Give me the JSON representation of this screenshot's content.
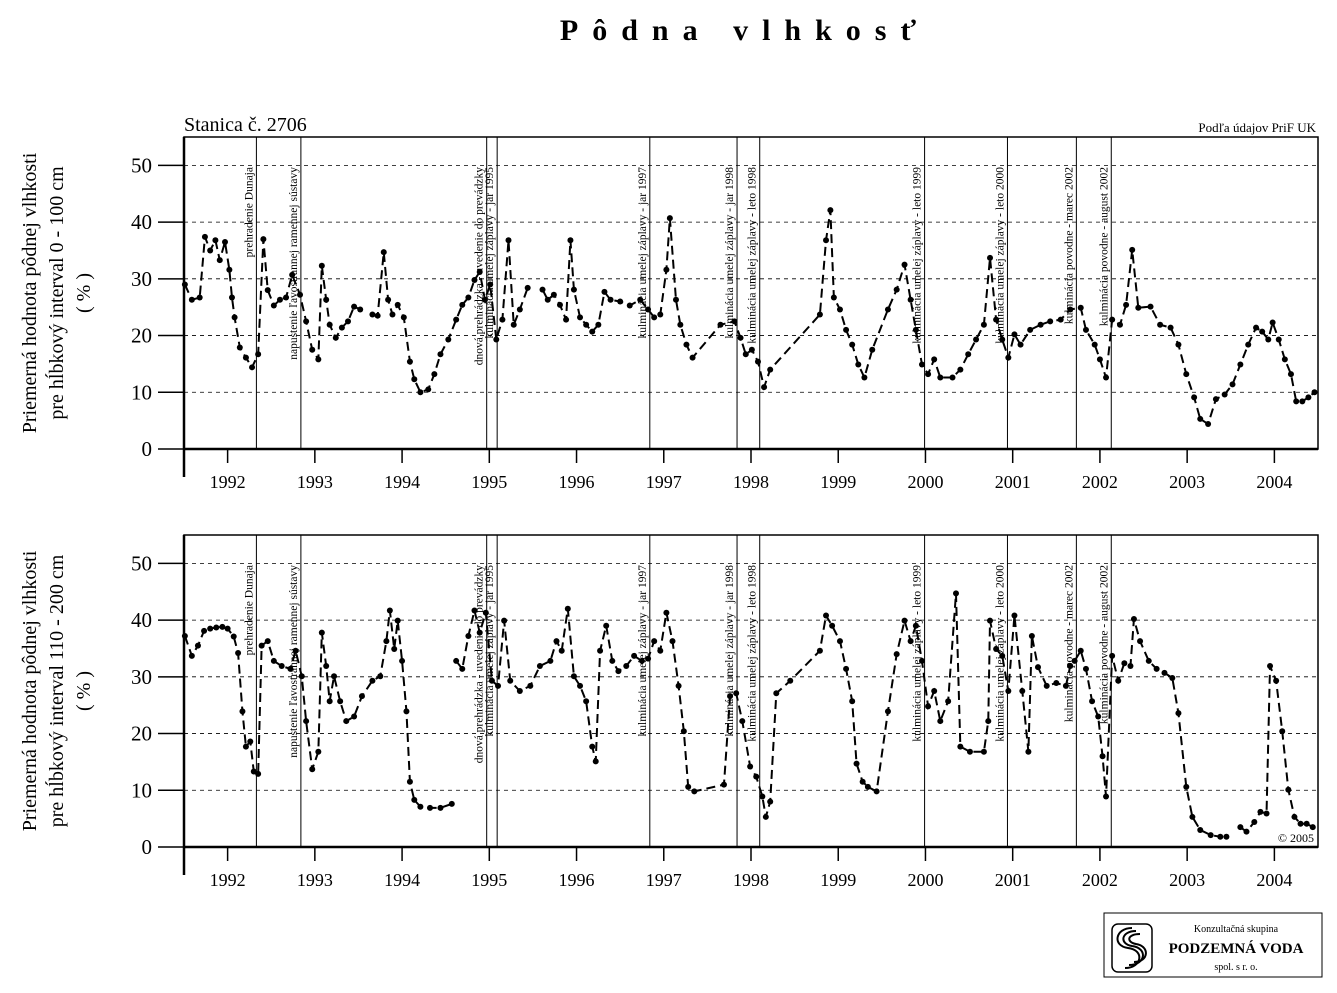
{
  "title": "Pôdna vlhkosť",
  "station": "Stanica č. 2706",
  "source": "Podľa údajov PriF UK",
  "copyright": "© 2005",
  "logo": {
    "line1": "Konzultačná skupina",
    "line2": "PODZEMNÁ VODA",
    "line3": "spol. s r. o."
  },
  "chart_data": [
    {
      "type": "line",
      "ylabel": [
        "Priemerná hodnota pôdnej vlhkosti",
        "pre hĺbkový interval 0 - 100 cm",
        "( % )"
      ],
      "color": "#000000",
      "grid": true,
      "xlim": [
        1992,
        2005
      ],
      "ylim": [
        0,
        55
      ],
      "yticks": [
        0,
        10,
        20,
        30,
        40,
        50
      ],
      "xticks": [
        {
          "value": 1992.5,
          "label": "1992"
        },
        {
          "value": 1993.5,
          "label": "1993"
        },
        {
          "value": 1994.5,
          "label": "1994"
        },
        {
          "value": 1995.5,
          "label": "1995"
        },
        {
          "value": 1996.5,
          "label": "1996"
        },
        {
          "value": 1997.5,
          "label": "1997"
        },
        {
          "value": 1998.5,
          "label": "1998"
        },
        {
          "value": 1999.5,
          "label": "1999"
        },
        {
          "value": 2000.5,
          "label": "2000"
        },
        {
          "value": 2001.5,
          "label": "2001"
        },
        {
          "value": 2002.5,
          "label": "2002"
        },
        {
          "value": 2003.5,
          "label": "2003"
        },
        {
          "value": 2004.5,
          "label": "2004"
        }
      ],
      "annotations": [
        {
          "x": 1992.83,
          "label": "prehradenie Dunaja"
        },
        {
          "x": 1993.34,
          "label": "napustenie ľavostrannej ramennej sústavy"
        },
        {
          "x": 1995.47,
          "label": "dnová prehrádzka - uvedenie do prevádzky"
        },
        {
          "x": 1995.59,
          "label": "kulminácia umelej záplavy - jar 1995"
        },
        {
          "x": 1997.34,
          "label": "kulminácia umelej záplavy - jar 1997"
        },
        {
          "x": 1998.34,
          "label": "kulminácia umelej záplavy - jar 1998"
        },
        {
          "x": 1998.6,
          "label": "kulminácia umelej záplavy - leto 1998"
        },
        {
          "x": 2000.49,
          "label": "kulminácia umelej záplavy - leto 1999"
        },
        {
          "x": 2001.44,
          "label": "kulminácia umelej záplavy - leto 2000"
        },
        {
          "x": 2002.23,
          "label": "kulminácia povodne - marec 2002"
        },
        {
          "x": 2002.63,
          "label": "kulminácia povodne - august 2002"
        }
      ],
      "x": [
        1992.01,
        1992.09,
        1992.18,
        1992.24,
        1992.3,
        1992.36,
        1992.41,
        1992.47,
        1992.52,
        1992.55,
        1992.58,
        1992.64,
        1992.71,
        1992.78,
        1992.85,
        1992.91,
        1992.96,
        1993.03,
        1993.1,
        1993.17,
        1993.24,
        1993.33,
        1993.4,
        1993.47,
        1993.54,
        1993.58,
        1993.63,
        1993.67,
        1993.74,
        1993.81,
        1993.88,
        1993.95,
        1994.02,
        null,
        1994.16,
        1994.22,
        1994.29,
        1994.34,
        1994.39,
        1994.45,
        1994.52,
        1994.59,
        1994.64,
        1994.71,
        1994.8,
        1994.87,
        1994.94,
        1995.03,
        1995.12,
        1995.19,
        1995.26,
        1995.33,
        1995.39,
        1995.45,
        1995.51,
        1995.58,
        1995.65,
        1995.72,
        1995.78,
        1995.85,
        1995.94,
        null,
        1996.11,
        1996.17,
        1996.24,
        1996.31,
        1996.38,
        1996.43,
        1996.47,
        1996.54,
        1996.61,
        1996.68,
        1996.75,
        1996.82,
        1996.89,
        1997.0,
        1997.11,
        1997.23,
        1997.32,
        1997.39,
        1997.46,
        1997.53,
        1997.57,
        1997.64,
        1997.69,
        1997.76,
        1997.83,
        1998.15,
        1998.31,
        1998.38,
        1998.44,
        1998.51,
        1998.58,
        1998.65,
        1998.72,
        1999.29,
        1999.36,
        1999.41,
        1999.45,
        1999.52,
        1999.59,
        1999.66,
        1999.73,
        1999.8,
        1999.89,
        2000.07,
        2000.17,
        2000.26,
        2000.33,
        2000.39,
        2000.46,
        2000.53,
        2000.6,
        2000.67,
        2000.81,
        2000.9,
        2000.99,
        2001.08,
        2001.17,
        2001.24,
        2001.31,
        2001.38,
        2001.45,
        2001.52,
        2001.59,
        2001.7,
        2001.82,
        2001.93,
        2002.05,
        2002.16,
        2002.28,
        2002.34,
        2002.44,
        2002.5,
        2002.57,
        2002.64,
        2002.73,
        2002.8,
        2002.87,
        2002.94,
        2003.08,
        2003.19,
        2003.31,
        2003.4,
        2003.49,
        2003.58,
        2003.65,
        2003.74,
        2003.83,
        2003.93,
        2004.02,
        2004.11,
        2004.2,
        2004.29,
        2004.36,
        2004.43,
        2004.48,
        2004.55,
        2004.62,
        2004.69,
        2004.75,
        2004.82,
        2004.89,
        2004.96
      ],
      "values": [
        29,
        26.3,
        26.7,
        37.4,
        35,
        36.8,
        33.3,
        36.5,
        31.6,
        26.7,
        23.2,
        17.9,
        16.1,
        14.4,
        16.7,
        37,
        28,
        25.3,
        26.3,
        26.7,
        30.7,
        27.2,
        22.5,
        17.5,
        15.8,
        32.3,
        26.3,
        21.9,
        19.6,
        21.4,
        22.5,
        25.1,
        24.6,
        null,
        23.7,
        23.5,
        34.7,
        26.3,
        23.7,
        25.4,
        23.2,
        15.4,
        12.3,
        10,
        10.5,
        13.2,
        16.7,
        19.3,
        22.8,
        25.4,
        26.7,
        29.8,
        31.2,
        26.3,
        29,
        19.3,
        22.8,
        36.8,
        21.9,
        24.6,
        28.4,
        null,
        28.1,
        26.3,
        27.2,
        25.4,
        22.8,
        36.8,
        28.1,
        23.2,
        21.9,
        20.7,
        21.9,
        27.7,
        26.3,
        26,
        25.3,
        26.3,
        24.6,
        23.2,
        23.7,
        31.6,
        40.7,
        26.3,
        21.9,
        18.4,
        16.1,
        21.9,
        22.5,
        19.6,
        16.7,
        17.5,
        15.4,
        10.9,
        14,
        23.7,
        36.8,
        42.1,
        26.7,
        24.6,
        21,
        18.4,
        14.9,
        12.6,
        17.5,
        24.6,
        28.1,
        32.5,
        26.3,
        21,
        14.9,
        13.2,
        15.8,
        12.6,
        12.6,
        14,
        16.7,
        19.3,
        21.9,
        33.7,
        22.8,
        19.3,
        16.1,
        20.2,
        18.4,
        21,
        21.9,
        22.5,
        22.8,
        24.6,
        24.9,
        21,
        18.4,
        15.8,
        12.6,
        22.8,
        21.9,
        25.4,
        35.1,
        24.9,
        25.1,
        21.9,
        21.4,
        18.4,
        13.2,
        9.1,
        5.3,
        4.4,
        8.8,
        9.6,
        11.4,
        14.9,
        18.4,
        21.4,
        20.7,
        19.3,
        22.3,
        19.3,
        15.8,
        13.2,
        8.4,
        8.4,
        9.1,
        10
      ]
    },
    {
      "type": "line",
      "ylabel": [
        "Priemerná hodnota pôdnej vlhkosti",
        "pre hĺbkový interval 110 - 200 cm",
        "( % )"
      ],
      "color": "#000000",
      "grid": true,
      "xlim": [
        1992,
        2005
      ],
      "ylim": [
        0,
        55
      ],
      "yticks": [
        0,
        10,
        20,
        30,
        40,
        50
      ],
      "xticks": [
        {
          "value": 1992.5,
          "label": "1992"
        },
        {
          "value": 1993.5,
          "label": "1993"
        },
        {
          "value": 1994.5,
          "label": "1994"
        },
        {
          "value": 1995.5,
          "label": "1995"
        },
        {
          "value": 1996.5,
          "label": "1996"
        },
        {
          "value": 1997.5,
          "label": "1997"
        },
        {
          "value": 1998.5,
          "label": "1998"
        },
        {
          "value": 1999.5,
          "label": "1999"
        },
        {
          "value": 2000.5,
          "label": "2000"
        },
        {
          "value": 2001.5,
          "label": "2001"
        },
        {
          "value": 2002.5,
          "label": "2002"
        },
        {
          "value": 2003.5,
          "label": "2003"
        },
        {
          "value": 2004.5,
          "label": "2004"
        }
      ],
      "annotations": [
        {
          "x": 1992.83,
          "label": "prehradenie Dunaja"
        },
        {
          "x": 1993.34,
          "label": "napustenie ľavostrannej ramennej sústavy"
        },
        {
          "x": 1995.47,
          "label": "dnová prehrádzka - uvedenie do prevádzky"
        },
        {
          "x": 1995.59,
          "label": "kulminácia umelej záplavy - jar 1995"
        },
        {
          "x": 1997.34,
          "label": "kulminácia umelej záplavy - jar 1997"
        },
        {
          "x": 1998.34,
          "label": "kulminácia umelej záplavy - jar 1998"
        },
        {
          "x": 1998.6,
          "label": "kulminácia umelej záplavy - leto 1998"
        },
        {
          "x": 2000.49,
          "label": "kulminácia umelej záplavy - leto 1999"
        },
        {
          "x": 2001.44,
          "label": "kulminácia umelej záplavy - leto 2000"
        },
        {
          "x": 2002.23,
          "label": "kulminácia povodne - marec 2002"
        },
        {
          "x": 2002.63,
          "label": "kulminácia povodne - august 2002"
        }
      ],
      "x": [
        1992.01,
        1992.09,
        1992.16,
        1992.23,
        1992.3,
        1992.37,
        1992.44,
        1992.5,
        1992.57,
        1992.62,
        1992.67,
        1992.71,
        1992.76,
        1992.8,
        1992.85,
        1992.89,
        1992.96,
        1993.03,
        1993.12,
        1993.22,
        1993.28,
        1993.35,
        1993.4,
        1993.47,
        1993.54,
        1993.58,
        1993.63,
        1993.67,
        1993.72,
        1993.79,
        1993.86,
        1993.95,
        1994.04,
        1994.16,
        1994.25,
        1994.32,
        1994.36,
        1994.41,
        1994.45,
        1994.5,
        1994.55,
        1994.59,
        1994.64,
        1994.71,
        1994.82,
        1994.94,
        1995.07,
        null,
        1995.12,
        1995.19,
        1995.26,
        1995.33,
        1995.39,
        1995.46,
        1995.53,
        1995.6,
        1995.67,
        1995.74,
        1995.85,
        1995.97,
        1996.08,
        1996.2,
        1996.27,
        1996.33,
        1996.4,
        1996.47,
        1996.54,
        1996.61,
        1996.68,
        1996.72,
        1996.77,
        1996.84,
        1996.91,
        1996.98,
        1997.07,
        1997.16,
        1997.25,
        1997.32,
        1997.39,
        1997.46,
        1997.53,
        1997.6,
        1997.67,
        1997.73,
        1997.78,
        1997.85,
        1998.19,
        1998.26,
        1998.33,
        1998.4,
        1998.49,
        1998.56,
        1998.63,
        1998.67,
        1998.72,
        1998.79,
        1998.95,
        1999.29,
        1999.36,
        1999.43,
        1999.52,
        1999.59,
        1999.66,
        1999.71,
        1999.78,
        1999.84,
        1999.94,
        2000.07,
        2000.17,
        2000.26,
        2000.33,
        2000.39,
        2000.46,
        2000.53,
        2000.6,
        2000.67,
        2000.76,
        2000.85,
        2000.9,
        2001.01,
        2001.17,
        2001.22,
        2001.24,
        2001.31,
        2001.38,
        2001.45,
        2001.52,
        2001.61,
        2001.68,
        2001.72,
        2001.79,
        2001.89,
        2002.0,
        2002.11,
        2002.16,
        2002.21,
        2002.28,
        2002.34,
        2002.41,
        2002.48,
        2002.53,
        2002.57,
        2002.64,
        2002.71,
        2002.78,
        2002.85,
        2002.89,
        2002.96,
        2003.06,
        2003.15,
        2003.24,
        2003.33,
        2003.4,
        2003.49,
        2003.56,
        2003.65,
        2003.77,
        2003.88,
        2003.95,
        null,
        2004.11,
        2004.18,
        2004.27,
        2004.34,
        2004.41,
        2004.45,
        2004.52,
        2004.59,
        2004.66,
        2004.73,
        2004.8,
        2004.87,
        2004.94
      ],
      "values": [
        37.2,
        33.7,
        35.5,
        38.1,
        38.5,
        38.7,
        38.8,
        38.5,
        37.1,
        34.2,
        23.9,
        17.7,
        18.6,
        13.3,
        12.9,
        35.5,
        36.3,
        32.8,
        31.9,
        31.4,
        34.6,
        30.1,
        22.2,
        13.7,
        16.8,
        37.8,
        31.9,
        25.7,
        30.1,
        25.7,
        22.2,
        23,
        26.6,
        29.3,
        30.1,
        36.3,
        41.7,
        34.9,
        39.9,
        32.8,
        23.9,
        11.5,
        8.3,
        7.1,
        6.9,
        6.9,
        7.6,
        null,
        32.8,
        31.4,
        37.2,
        41.7,
        37.8,
        41.3,
        29.3,
        28.4,
        39.9,
        29.3,
        27.5,
        28.4,
        31.9,
        32.8,
        36.3,
        34.6,
        42,
        30.1,
        28.4,
        25.7,
        17.7,
        15.1,
        34.6,
        39,
        32.8,
        31,
        31.9,
        33.7,
        32.8,
        33.2,
        36.3,
        34.6,
        41.3,
        36.3,
        28.4,
        20.4,
        10.6,
        9.8,
        11,
        26.6,
        27.1,
        22.2,
        14.2,
        12.4,
        8.9,
        5.3,
        8,
        27.1,
        29.3,
        34.6,
        40.8,
        39,
        36.3,
        31.4,
        25.7,
        14.7,
        11.5,
        10.6,
        9.8,
        23.9,
        34,
        39.9,
        36.3,
        39,
        32.8,
        24.8,
        27.5,
        22.2,
        25.7,
        44.7,
        17.7,
        16.8,
        16.8,
        22.2,
        39.9,
        34.9,
        33.7,
        27.5,
        40.8,
        27.5,
        16.8,
        37.2,
        31.7,
        28.4,
        28.9,
        28.4,
        31.9,
        32.8,
        34.6,
        31.4,
        25.7,
        23,
        16,
        8.9,
        33.7,
        29.3,
        32.4,
        31.9,
        40.2,
        36.3,
        32.8,
        31.4,
        30.7,
        29.8,
        23.6,
        10.6,
        5.3,
        3,
        2.1,
        1.8,
        1.8,
        null,
        3.5,
        2.7,
        4.4,
        6.2,
        5.9,
        31.9,
        29.3,
        20.4,
        10.1,
        5.3,
        4.1,
        4.1,
        3.5
      ]
    }
  ]
}
